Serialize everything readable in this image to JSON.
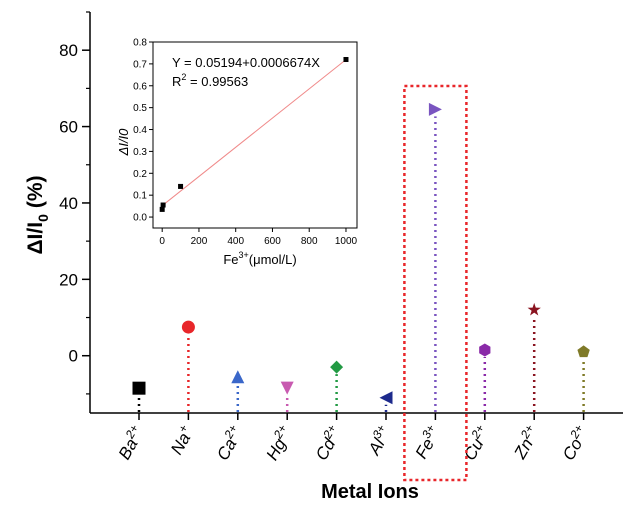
{
  "chart_data": [
    {
      "type": "scatter",
      "xlabel": "Metal Ions",
      "ylabel_main": "ΔI/I",
      "ylabel_sub": "0",
      "ylabel_unit": "(%)",
      "ylim": [
        -15,
        90
      ],
      "yticks": [
        0,
        20,
        40,
        60,
        80
      ],
      "categories": [
        {
          "base": "Ba",
          "sup": "2+",
          "value": -8.5,
          "color": "#000000",
          "marker": "square"
        },
        {
          "base": "Na",
          "sup": "+",
          "value": 7.5,
          "color": "#e8262a",
          "marker": "circle"
        },
        {
          "base": "Ca",
          "sup": "2+",
          "value": -5.5,
          "color": "#3a67c9",
          "marker": "triangle-up"
        },
        {
          "base": "Hg",
          "sup": "2+",
          "value": -8.5,
          "color": "#c85ab0",
          "marker": "triangle-down"
        },
        {
          "base": "Cd",
          "sup": "2+",
          "value": -3.0,
          "color": "#229a44",
          "marker": "diamond"
        },
        {
          "base": "Al",
          "sup": "3+",
          "value": -11.0,
          "color": "#1d2a8c",
          "marker": "triangle-left"
        },
        {
          "base": "Fe",
          "sup": "3+",
          "value": 64.5,
          "color": "#7a55c0",
          "marker": "triangle-right"
        },
        {
          "base": "Cu",
          "sup": "2+",
          "value": 1.5,
          "color": "#8a2aa8",
          "marker": "hexagon"
        },
        {
          "base": "Zn",
          "sup": "2+",
          "value": 12.0,
          "color": "#8a1420",
          "marker": "star"
        },
        {
          "base": "Co",
          "sup": "2+",
          "value": 1.0,
          "color": "#7f7a28",
          "marker": "pentagon"
        }
      ],
      "highlight": {
        "category": "Fe",
        "color": "#e8262a"
      }
    },
    {
      "type": "scatter",
      "inset": true,
      "equation": "Y = 0.05194+0.0006674X",
      "r2_prefix": "R",
      "r2_sup": "2",
      "r2_rest": " = 0.99563",
      "ylabel": "ΔI/I0",
      "xlabel_base": "Fe",
      "xlabel_sup": "3+",
      "xlabel_rest": "(μmol/L)",
      "xlim": [
        -50,
        1060
      ],
      "ylim": [
        -0.05,
        0.8
      ],
      "xticks": [
        0,
        200,
        400,
        600,
        800,
        1000
      ],
      "yticks": [
        0.0,
        0.1,
        0.2,
        0.3,
        0.4,
        0.5,
        0.6,
        0.7,
        0.8
      ],
      "points": [
        {
          "x": 0,
          "y": 0.035
        },
        {
          "x": 5,
          "y": 0.055
        },
        {
          "x": 100,
          "y": 0.14
        },
        {
          "x": 1000,
          "y": 0.72
        }
      ],
      "fit": {
        "intercept": 0.05194,
        "slope": 0.0006674,
        "color": "#f08a8a"
      }
    }
  ]
}
